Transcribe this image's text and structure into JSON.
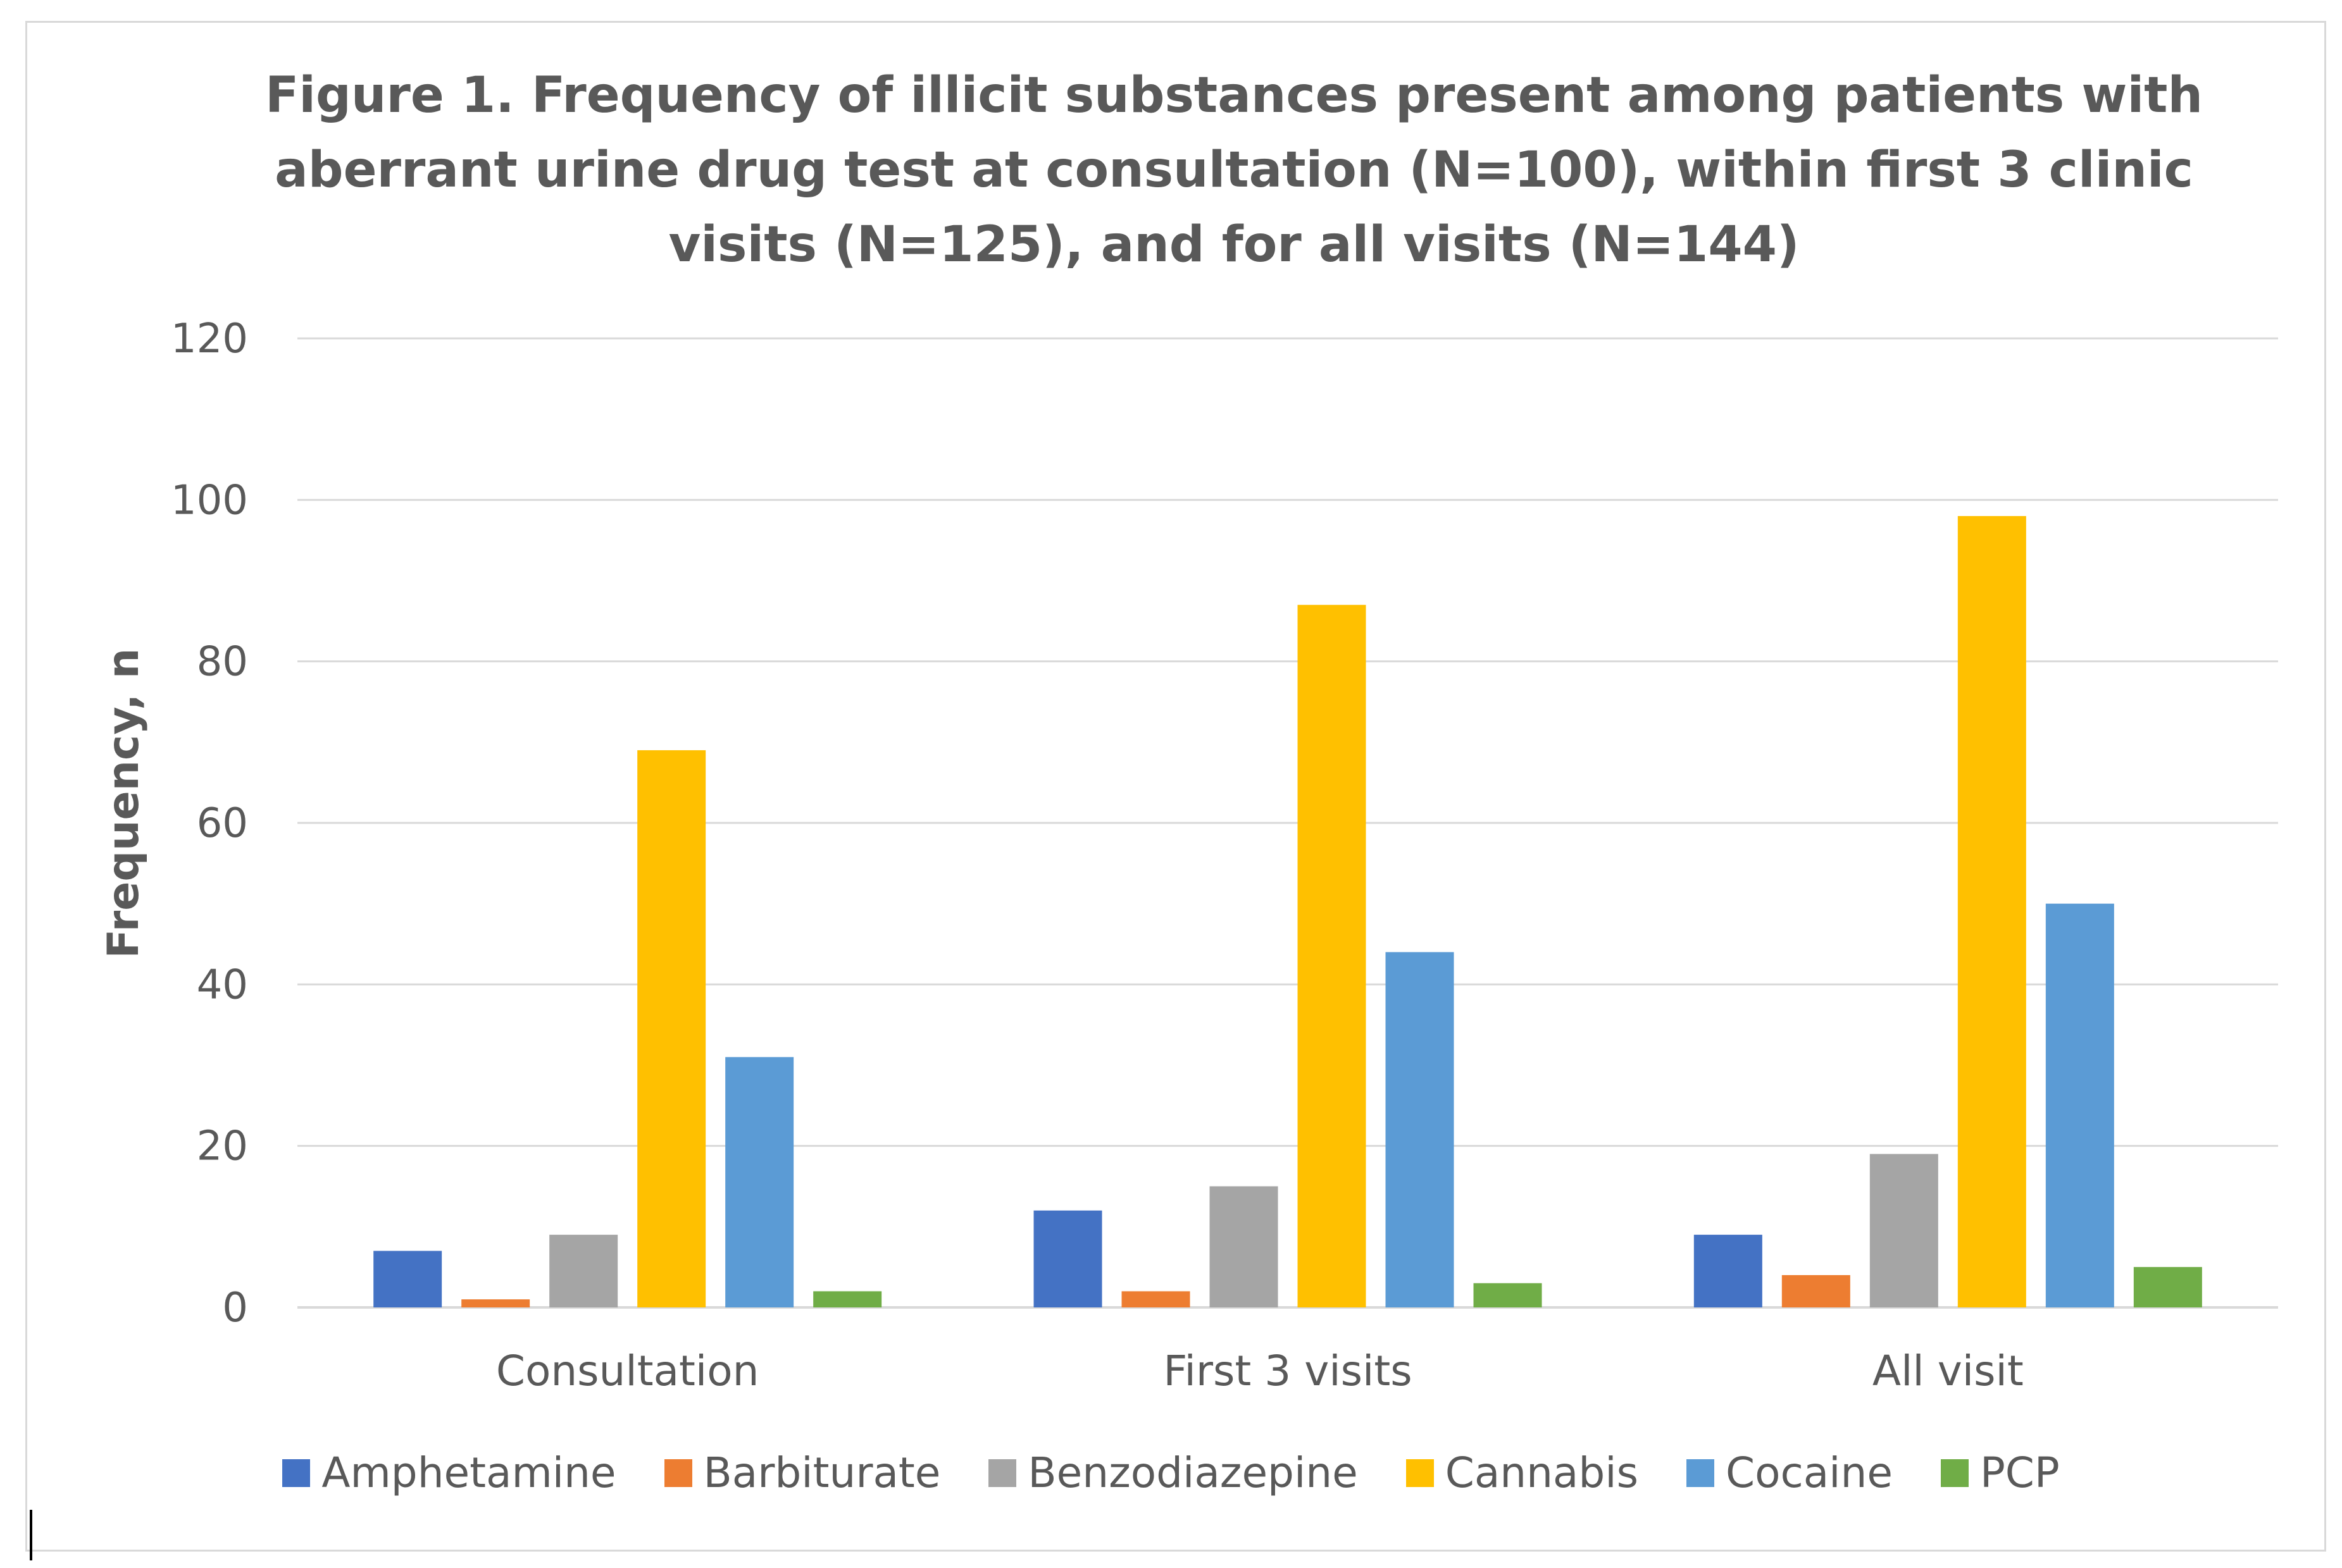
{
  "chart_data": {
    "type": "bar",
    "title_lines": [
      "Figure 1. Frequency of illicit substances present among patients with",
      "aberrant urine drug test at consultation (N=100), within first 3 clinic",
      "visits (N=125), and for all visits (N=144)"
    ],
    "xlabel": "",
    "ylabel": "Frequency, n",
    "ylim": [
      0,
      120
    ],
    "yticks": [
      "0",
      "20",
      "40",
      "60",
      "80",
      "100",
      "120"
    ],
    "grid": true,
    "legend_position": "bottom",
    "categories": [
      "Consultation",
      "First 3 visits",
      "All visit"
    ],
    "series": [
      {
        "name": "Amphetamine",
        "color": "#4472C4",
        "values": [
          7,
          12,
          9
        ]
      },
      {
        "name": "Barbiturate",
        "color": "#ED7D31",
        "values": [
          1,
          2,
          4
        ]
      },
      {
        "name": "Benzodiazepine",
        "color": "#A5A5A5",
        "values": [
          9,
          15,
          19
        ]
      },
      {
        "name": "Cannabis",
        "color": "#FFC000",
        "values": [
          69,
          87,
          98
        ]
      },
      {
        "name": "Cocaine",
        "color": "#5B9BD5",
        "values": [
          31,
          44,
          50
        ]
      },
      {
        "name": "PCP",
        "color": "#70AD47",
        "values": [
          2,
          3,
          5
        ]
      }
    ]
  }
}
